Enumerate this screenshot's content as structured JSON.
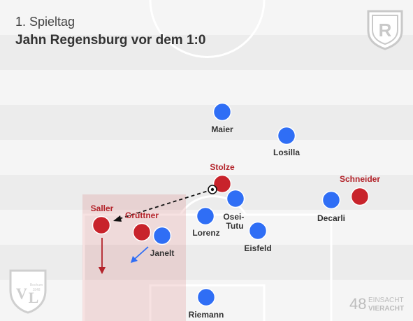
{
  "header": {
    "subtitle": "1. Spieltag",
    "title": "Jahn Regensburg vor dem 1:0"
  },
  "colors": {
    "team_red": "#c8232b",
    "team_blue": "#2f6ef5",
    "label_red": "#b3232a",
    "label_dark": "#333333"
  },
  "players_red": [
    {
      "name": "Stolze"
    },
    {
      "name": "Schneider"
    },
    {
      "name": "Saller"
    },
    {
      "name": "Grüttner"
    }
  ],
  "players_blue": [
    {
      "name": "Maier"
    },
    {
      "name": "Losilla"
    },
    {
      "name": "Decarli"
    },
    {
      "name": "Osei-\nTutu"
    },
    {
      "name": "Lorenz"
    },
    {
      "name": "Janelt"
    },
    {
      "name": "Eisfeld"
    },
    {
      "name": "Riemann"
    }
  ],
  "logos": {
    "top_right": "Jahn Regensburg crest (R)",
    "bottom_left": "VfL Bochum 1848 crest",
    "bottom_right_line1": "EINSACHT",
    "bottom_right_line2": "VIERACHT",
    "bottom_right_number": "48"
  },
  "icons": {
    "ball": "football-icon"
  }
}
